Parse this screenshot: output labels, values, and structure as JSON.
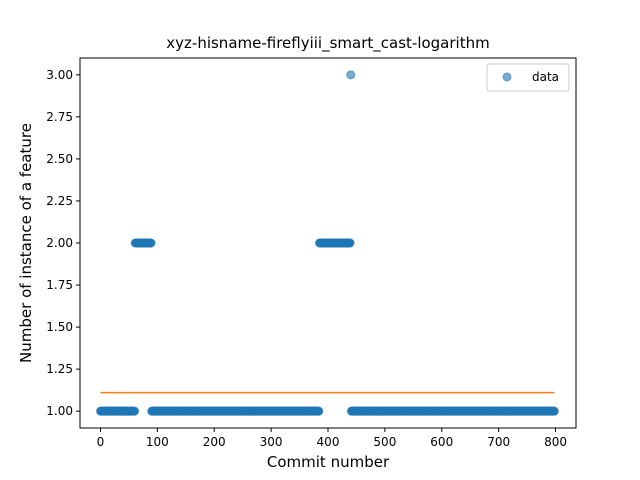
{
  "chart_data": {
    "type": "scatter",
    "title": "xyz-hisname-fireflyiii_smart_cast-logarithm",
    "xlabel": "Commit number",
    "ylabel": "Number of instance of a feature",
    "xlim": [
      -36,
      836
    ],
    "ylim": [
      0.9,
      3.1
    ],
    "xticks": [
      0,
      100,
      200,
      300,
      400,
      500,
      600,
      700,
      800
    ],
    "yticks": [
      1.0,
      1.25,
      1.5,
      1.75,
      2.0,
      2.25,
      2.5,
      2.75,
      3.0
    ],
    "ytick_labels": [
      "1.00",
      "1.25",
      "1.50",
      "1.75",
      "2.00",
      "2.25",
      "2.50",
      "2.75",
      "3.00"
    ],
    "grid": false,
    "legend": {
      "position": "top-right",
      "entries": [
        "data"
      ]
    },
    "series": [
      {
        "name": "data",
        "kind": "scatter",
        "color": "#1f77b4",
        "segments": [
          {
            "x_start": 0,
            "x_end": 60,
            "y": 1
          },
          {
            "x_start": 61,
            "x_end": 89,
            "y": 2
          },
          {
            "x_start": 90,
            "x_end": 384,
            "y": 1
          },
          {
            "x_start": 385,
            "x_end": 439,
            "y": 2
          },
          {
            "x_start": 440,
            "x_end": 440,
            "y": 3
          },
          {
            "x_start": 441,
            "x_end": 798,
            "y": 1
          }
        ]
      },
      {
        "kind": "line",
        "color": "#ff7f0e",
        "x": [
          0,
          798
        ],
        "y": [
          1.11,
          1.11
        ]
      }
    ]
  }
}
